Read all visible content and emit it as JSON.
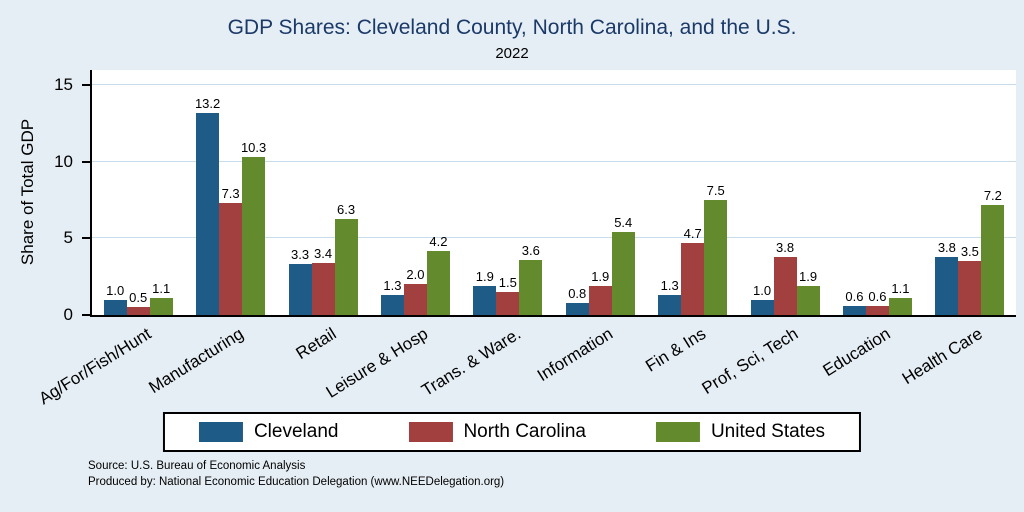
{
  "chart_data": {
    "type": "bar",
    "title": "GDP Shares: Cleveland County, North Carolina, and the U.S.",
    "subtitle": "2022",
    "ylabel": "Share of Total GDP",
    "xlabel": "",
    "categories": [
      "Ag/For/Fish/Hunt",
      "Manufacturing",
      "Retail",
      "Leisure & Hosp",
      "Trans. & Ware.",
      "Information",
      "Fin & Ins",
      "Prof, Sci, Tech",
      "Education",
      "Health Care"
    ],
    "series": [
      {
        "name": "Cleveland",
        "color": "#1f5b87",
        "values": [
          1.0,
          13.2,
          3.3,
          1.3,
          1.9,
          0.8,
          1.3,
          1.0,
          0.6,
          3.8
        ]
      },
      {
        "name": "North Carolina",
        "color": "#a2403f",
        "values": [
          0.5,
          7.3,
          3.4,
          2.0,
          1.5,
          1.9,
          4.7,
          3.8,
          0.6,
          3.5
        ]
      },
      {
        "name": "United States",
        "color": "#648a2e",
        "values": [
          1.1,
          10.3,
          6.3,
          4.2,
          3.6,
          5.4,
          7.5,
          1.9,
          1.1,
          7.2
        ]
      }
    ],
    "yticks": [
      0,
      5,
      10,
      15
    ],
    "ylim": [
      0,
      16
    ],
    "grid": true,
    "legend_position": "bottom"
  },
  "notes": [
    "Source: U.S. Bureau of Economic Analysis",
    "Produced by: National Economic Education Delegation (www.NEEDelegation.org)"
  ],
  "colors": {
    "background": "#e6eef5",
    "plot_background": "#ffffff",
    "gridline": "#c8dcec",
    "title": "#1b3a68",
    "axis": "#000000"
  }
}
